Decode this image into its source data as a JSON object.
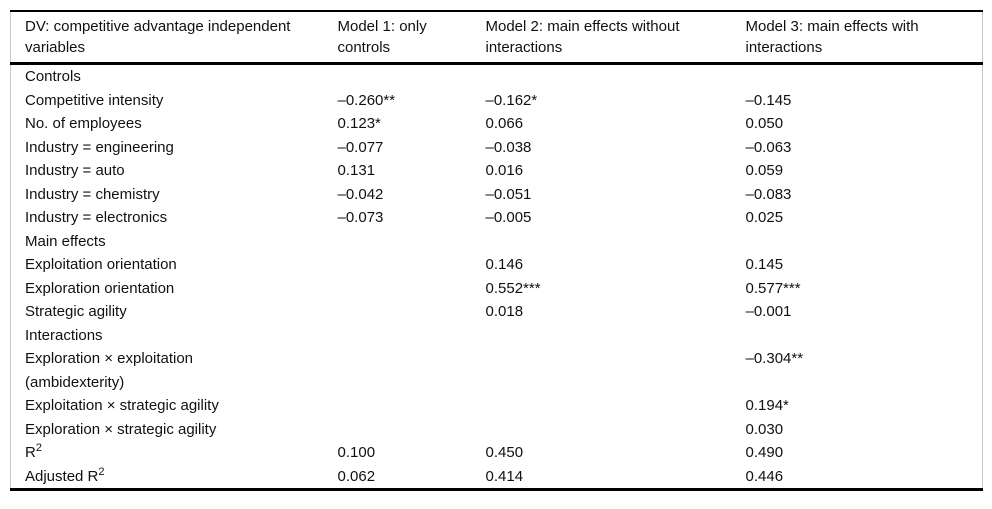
{
  "table": {
    "columns": [
      {
        "header": "DV: competitive advantage independent variables"
      },
      {
        "header": "Model 1: only controls"
      },
      {
        "header": "Model 2: main effects without interactions"
      },
      {
        "header": "Model 3: main effects with interactions"
      }
    ],
    "rows": [
      {
        "type": "section",
        "label": "Controls"
      },
      {
        "type": "data",
        "label": "Competitive intensity",
        "values": [
          "–0.260**",
          "–0.162*",
          "–0.145"
        ]
      },
      {
        "type": "data",
        "label": "No. of employees",
        "values": [
          "0.123*",
          "0.066",
          "0.050"
        ]
      },
      {
        "type": "data",
        "label": "Industry = engineering",
        "values": [
          "–0.077",
          "–0.038",
          "–0.063"
        ]
      },
      {
        "type": "data",
        "label": "Industry = auto",
        "values": [
          "0.131",
          "0.016",
          "0.059"
        ]
      },
      {
        "type": "data",
        "label": "Industry = chemistry",
        "values": [
          "–0.042",
          "–0.051",
          "–0.083"
        ]
      },
      {
        "type": "data",
        "label": "Industry = electronics",
        "values": [
          "–0.073",
          "–0.005",
          "0.025"
        ]
      },
      {
        "type": "section",
        "label": "Main effects"
      },
      {
        "type": "data",
        "label": "Exploitation orientation",
        "values": [
          "",
          "0.146",
          "0.145"
        ]
      },
      {
        "type": "data",
        "label": "Exploration orientation",
        "values": [
          "",
          "0.552***",
          "0.577***"
        ]
      },
      {
        "type": "data",
        "label": "Strategic agility",
        "values": [
          "",
          "0.018",
          "–0.001"
        ]
      },
      {
        "type": "section",
        "label": "Interactions"
      },
      {
        "type": "data",
        "label": "Exploration × exploitation",
        "label_line2": "(ambidexterity)",
        "values": [
          "",
          "",
          "–0.304**"
        ]
      },
      {
        "type": "data",
        "label": "Exploitation × strategic agility",
        "values": [
          "",
          "",
          "0.194*"
        ]
      },
      {
        "type": "data",
        "label": "Exploration × strategic agility",
        "values": [
          "",
          "",
          "0.030"
        ]
      },
      {
        "type": "data",
        "label": "R",
        "label_sup": "2",
        "values": [
          "0.100",
          "0.450",
          "0.490"
        ]
      },
      {
        "type": "data",
        "label": "Adjusted R",
        "label_sup": "2",
        "values": [
          "0.062",
          "0.414",
          "0.446"
        ]
      }
    ]
  },
  "colors": {
    "background": "#ffffff",
    "text": "#111111",
    "rule": "#000000",
    "frame_side": "#c8c8c8"
  }
}
